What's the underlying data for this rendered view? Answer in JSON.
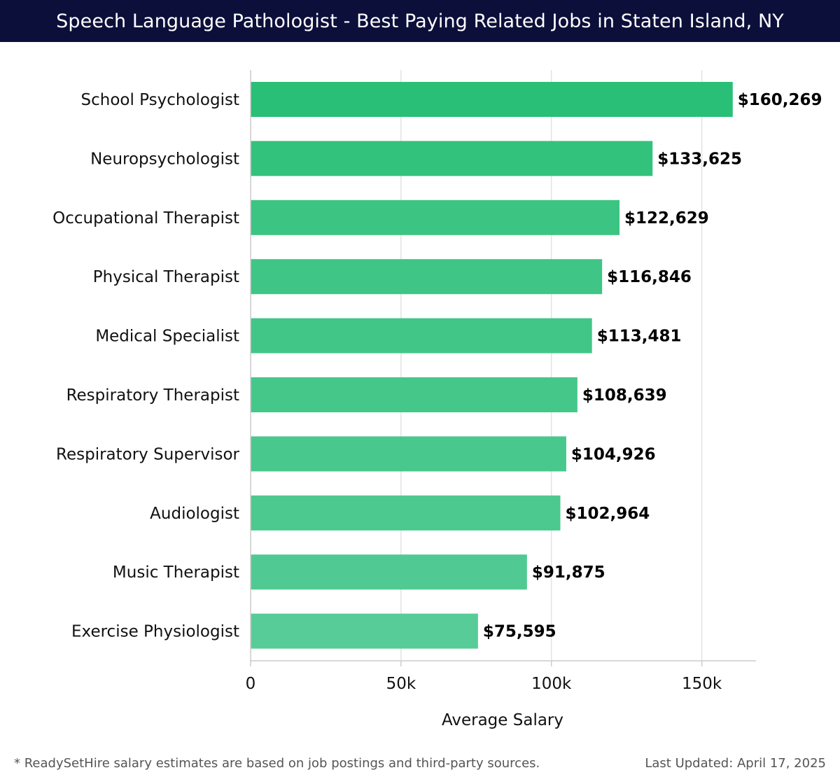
{
  "header": {
    "title": "Speech Language Pathologist - Best Paying Related Jobs in Staten Island, NY"
  },
  "chart_data": {
    "type": "bar",
    "orientation": "horizontal",
    "title": "Speech Language Pathologist - Best Paying Related Jobs in Staten Island, NY",
    "xlabel": "Average Salary",
    "ylabel": "",
    "xlim": [
      0,
      168000
    ],
    "grid": true,
    "categories": [
      "School Psychologist",
      "Neuropsychologist",
      "Occupational Therapist",
      "Physical Therapist",
      "Medical Specialist",
      "Respiratory Therapist",
      "Respiratory Supervisor",
      "Audiologist",
      "Music Therapist",
      "Exercise Physiologist"
    ],
    "values": [
      160269,
      133625,
      122629,
      116846,
      113481,
      108639,
      104926,
      102964,
      91875,
      75595
    ],
    "value_labels": [
      "$160,269",
      "$133,625",
      "$122,629",
      "$116,846",
      "$113,481",
      "$108,639",
      "$104,926",
      "$102,964",
      "$91,875",
      "$75,595"
    ],
    "ticks": [
      0,
      50000,
      100000,
      150000
    ],
    "tick_labels": [
      "0",
      "50k",
      "100k",
      "150k"
    ],
    "bar_colors": [
      "#2abf76",
      "#33c27c",
      "#3cc482",
      "#3fc585",
      "#42c688",
      "#45c78a",
      "#48c88c",
      "#4bc98e",
      "#50ca92",
      "#58cc98"
    ]
  },
  "footer": {
    "note": "* ReadySetHire salary estimates are based on job postings and third-party sources.",
    "updated": "Last Updated: April 17, 2025"
  }
}
